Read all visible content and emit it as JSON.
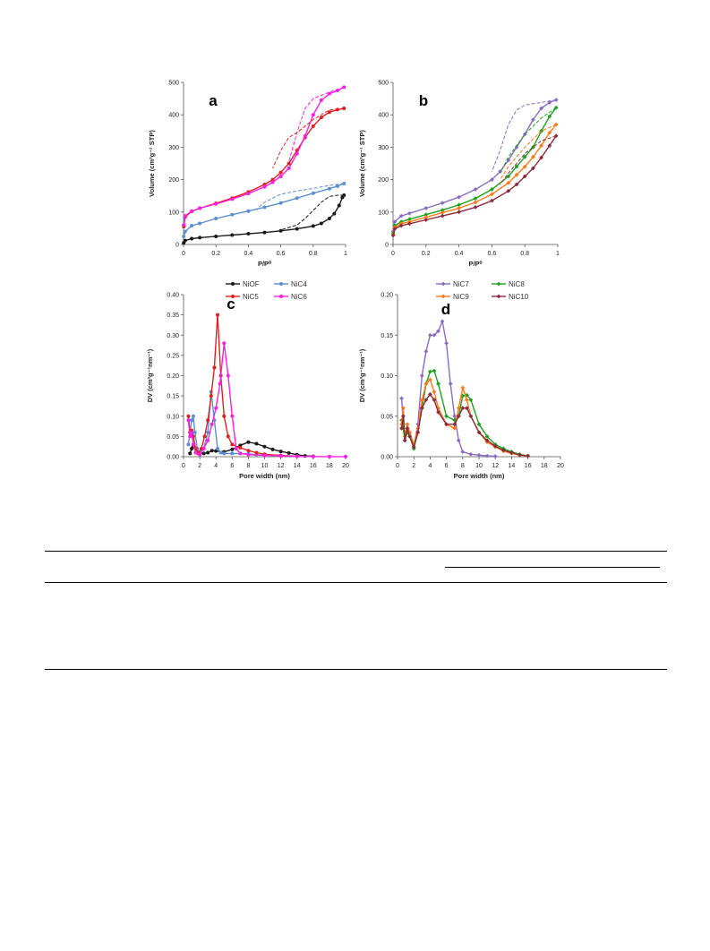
{
  "chart_data": [
    {
      "panel": "a",
      "type": "line",
      "xlabel": "P/P⁰",
      "ylabel": "Volume (cm³g⁻¹ STP)",
      "xlim": [
        0,
        1
      ],
      "ylim": [
        0,
        500
      ],
      "xticks": [
        "0",
        "0.2",
        "0.4",
        "0.6",
        "0.8",
        "1"
      ],
      "yticks": [
        "0",
        "100",
        "200",
        "300",
        "400",
        "500"
      ],
      "grid": false,
      "series": [
        {
          "name": "NiOF",
          "color": "#1a1a1a",
          "marker": "circle",
          "x": [
            0.001,
            0.01,
            0.05,
            0.1,
            0.2,
            0.3,
            0.4,
            0.5,
            0.6,
            0.7,
            0.8,
            0.85,
            0.9,
            0.93,
            0.96,
            0.98,
            0.99
          ],
          "y": [
            5,
            12,
            18,
            21,
            25,
            29,
            33,
            37,
            42,
            48,
            57,
            65,
            80,
            95,
            120,
            145,
            152
          ],
          "desorption": {
            "x": [
              0.99,
              0.95,
              0.9,
              0.85,
              0.8,
              0.75,
              0.7,
              0.6
            ],
            "y": [
              152,
              152,
              148,
              130,
              105,
              80,
              60,
              45
            ]
          }
        },
        {
          "name": "NiC4",
          "color": "#5b8fd0",
          "marker": "circle",
          "x": [
            0.001,
            0.01,
            0.05,
            0.1,
            0.2,
            0.3,
            0.4,
            0.5,
            0.6,
            0.7,
            0.8,
            0.9,
            0.95,
            0.99
          ],
          "y": [
            25,
            40,
            58,
            65,
            80,
            92,
            103,
            115,
            128,
            143,
            158,
            172,
            180,
            188
          ],
          "desorption": {
            "x": [
              0.99,
              0.9,
              0.8,
              0.7,
              0.6,
              0.5,
              0.45
            ],
            "y": [
              188,
              182,
              173,
              165,
              155,
              130,
              108
            ]
          }
        },
        {
          "name": "NiC5",
          "color": "#e02020",
          "marker": "circle",
          "x": [
            0.001,
            0.01,
            0.05,
            0.1,
            0.2,
            0.3,
            0.4,
            0.5,
            0.55,
            0.6,
            0.65,
            0.7,
            0.75,
            0.8,
            0.85,
            0.9,
            0.95,
            0.99
          ],
          "y": [
            55,
            85,
            102,
            112,
            127,
            143,
            162,
            185,
            200,
            222,
            250,
            290,
            330,
            365,
            392,
            408,
            416,
            420
          ],
          "desorption": {
            "x": [
              0.99,
              0.9,
              0.8,
              0.7,
              0.65,
              0.6,
              0.55
            ],
            "y": [
              420,
              415,
              385,
              345,
              330,
              290,
              235
            ]
          }
        },
        {
          "name": "NiC6",
          "color": "#ff1fe0",
          "marker": "circle",
          "x": [
            0.001,
            0.01,
            0.05,
            0.1,
            0.2,
            0.3,
            0.4,
            0.5,
            0.55,
            0.6,
            0.65,
            0.7,
            0.75,
            0.8,
            0.85,
            0.9,
            0.95,
            0.99
          ],
          "y": [
            60,
            88,
            103,
            112,
            125,
            140,
            157,
            178,
            192,
            210,
            235,
            280,
            335,
            400,
            445,
            465,
            475,
            485
          ],
          "desorption": {
            "x": [
              0.99,
              0.9,
              0.85,
              0.8,
              0.75,
              0.7,
              0.65
            ],
            "y": [
              485,
              470,
              460,
              450,
              420,
              345,
              255
            ]
          }
        }
      ],
      "label": "a"
    },
    {
      "panel": "b",
      "type": "line",
      "xlabel": "P/P⁰",
      "ylabel": "Volume (cm³g⁻¹ STP)",
      "xlim": [
        0,
        1
      ],
      "ylim": [
        0,
        500
      ],
      "xticks": [
        "0",
        "0.2",
        "0.4",
        "0.6",
        "0.8",
        "1"
      ],
      "yticks": [
        "0",
        "100",
        "200",
        "300",
        "400",
        "500"
      ],
      "grid": false,
      "series": [
        {
          "name": "NiC7",
          "color": "#8b6cc0",
          "marker": "diamond",
          "x": [
            0.001,
            0.01,
            0.05,
            0.1,
            0.2,
            0.3,
            0.4,
            0.5,
            0.6,
            0.65,
            0.7,
            0.75,
            0.8,
            0.85,
            0.9,
            0.95,
            0.99
          ],
          "y": [
            40,
            70,
            88,
            96,
            112,
            128,
            146,
            170,
            200,
            225,
            260,
            300,
            340,
            385,
            420,
            438,
            446
          ],
          "desorption": {
            "x": [
              0.99,
              0.9,
              0.8,
              0.75,
              0.7,
              0.65,
              0.6
            ],
            "y": [
              446,
              438,
              430,
              415,
              370,
              290,
              225
            ]
          }
        },
        {
          "name": "NiC8",
          "color": "#1fa01f",
          "marker": "diamond",
          "x": [
            0.001,
            0.01,
            0.05,
            0.1,
            0.2,
            0.3,
            0.4,
            0.5,
            0.6,
            0.7,
            0.75,
            0.8,
            0.85,
            0.9,
            0.95,
            0.99
          ],
          "y": [
            35,
            58,
            70,
            78,
            92,
            106,
            122,
            142,
            170,
            210,
            240,
            270,
            300,
            350,
            395,
            422
          ],
          "desorption": {
            "x": [
              0.99,
              0.9,
              0.8,
              0.7,
              0.65
            ],
            "y": [
              422,
              390,
              340,
              270,
              220
            ]
          }
        },
        {
          "name": "NiC9",
          "color": "#ff7a1a",
          "marker": "diamond",
          "x": [
            0.001,
            0.01,
            0.05,
            0.1,
            0.2,
            0.3,
            0.4,
            0.5,
            0.6,
            0.7,
            0.75,
            0.8,
            0.85,
            0.9,
            0.95,
            0.99
          ],
          "y": [
            30,
            52,
            64,
            70,
            84,
            98,
            112,
            130,
            155,
            190,
            215,
            240,
            270,
            305,
            345,
            370
          ],
          "desorption": {
            "x": [
              0.99,
              0.9,
              0.8,
              0.7,
              0.65
            ],
            "y": [
              370,
              350,
              300,
              240,
              200
            ]
          }
        },
        {
          "name": "NiC10",
          "color": "#8b2b3b",
          "marker": "diamond",
          "x": [
            0.001,
            0.01,
            0.05,
            0.1,
            0.2,
            0.3,
            0.4,
            0.5,
            0.6,
            0.7,
            0.75,
            0.8,
            0.85,
            0.9,
            0.95,
            0.99
          ],
          "y": [
            28,
            48,
            58,
            64,
            76,
            88,
            100,
            115,
            135,
            165,
            185,
            210,
            235,
            268,
            305,
            335
          ],
          "desorption": {
            "x": [
              0.99,
              0.9,
              0.8,
              0.7,
              0.65
            ],
            "y": [
              335,
              320,
              280,
              220,
              185
            ]
          }
        }
      ],
      "label": "b"
    },
    {
      "panel": "c",
      "type": "line",
      "xlabel": "Pore width (nm)",
      "ylabel": "DV (cm³g⁻¹nm⁻¹)",
      "xlim": [
        0,
        20
      ],
      "ylim": [
        0,
        0.4
      ],
      "xticks": [
        "0",
        "2",
        "4",
        "6",
        "8",
        "10",
        "12",
        "14",
        "16",
        "18",
        "20"
      ],
      "yticks": [
        "0.00",
        "0.05",
        "0.10",
        "0.15",
        "0.20",
        "0.25",
        "0.30",
        "0.35",
        "0.40"
      ],
      "grid": false,
      "legend_position": "top",
      "series": [
        {
          "name": "NiOF",
          "color": "#1a1a1a",
          "marker": "circle",
          "x": [
            0.8,
            1.0,
            1.2,
            1.5,
            2.0,
            2.5,
            3.0,
            3.5,
            4.0,
            5.0,
            6.0,
            7.0,
            8.0,
            9.0,
            10.0,
            11.0,
            12.0,
            13.0,
            14.0,
            15.0,
            16.0
          ],
          "y": [
            0.008,
            0.02,
            0.025,
            0.02,
            0.01,
            0.008,
            0.01,
            0.015,
            0.014,
            0.012,
            0.018,
            0.028,
            0.036,
            0.032,
            0.025,
            0.018,
            0.013,
            0.009,
            0.005,
            0.002,
            0.001
          ]
        },
        {
          "name": "NiC4",
          "color": "#5b8fd0",
          "marker": "circle",
          "x": [
            0.6,
            0.8,
            1.0,
            1.2,
            1.4,
            1.7,
            2.0,
            2.5,
            3.0,
            3.4,
            3.8,
            4.2,
            4.6,
            5.0,
            6.0,
            7.0,
            8.0,
            9.0,
            10.0
          ],
          "y": [
            0.03,
            0.06,
            0.09,
            0.1,
            0.06,
            0.02,
            0.01,
            0.02,
            0.06,
            0.16,
            0.09,
            0.02,
            0.01,
            0.008,
            0.008,
            0.008,
            0.007,
            0.005,
            0.003
          ]
        },
        {
          "name": "NiC5",
          "color": "#e02020",
          "marker": "circle",
          "x": [
            0.6,
            0.8,
            1.0,
            1.2,
            1.5,
            1.8,
            2.2,
            2.6,
            3.0,
            3.4,
            3.8,
            4.2,
            4.6,
            5.0,
            5.5,
            6.0,
            7.0,
            8.0,
            9.0,
            10.0,
            12.0,
            14.0
          ],
          "y": [
            0.1,
            0.06,
            0.065,
            0.05,
            0.02,
            0.008,
            0.02,
            0.05,
            0.09,
            0.15,
            0.22,
            0.35,
            0.2,
            0.1,
            0.05,
            0.03,
            0.022,
            0.015,
            0.01,
            0.006,
            0.003,
            0.001
          ]
        },
        {
          "name": "NiC6",
          "color": "#ff1fe0",
          "marker": "circle",
          "x": [
            0.6,
            0.8,
            1.0,
            1.2,
            1.5,
            2.0,
            2.5,
            3.0,
            3.5,
            4.0,
            4.5,
            5.0,
            5.5,
            6.0,
            6.5,
            7.0,
            8.0,
            10.0,
            12.0,
            14.0,
            16.0,
            18.0,
            20.0
          ],
          "y": [
            0.09,
            0.05,
            0.06,
            0.03,
            0.01,
            0.005,
            0.02,
            0.04,
            0.08,
            0.12,
            0.18,
            0.28,
            0.2,
            0.1,
            0.02,
            0.008,
            0.005,
            0.003,
            0.002,
            0.001,
            0.0005,
            0.0003,
            0.0002
          ]
        }
      ],
      "label": "c"
    },
    {
      "panel": "d",
      "type": "line",
      "xlabel": "Pore width (nm)",
      "ylabel": "DV (cm³g⁻¹nm⁻¹)",
      "xlim": [
        0,
        20
      ],
      "ylim": [
        0,
        0.2
      ],
      "xticks": [
        "0",
        "2",
        "4",
        "6",
        "8",
        "10",
        "12",
        "14",
        "16",
        "18",
        "20"
      ],
      "yticks": [
        "0.00",
        "0.05",
        "0.10",
        "0.15",
        "0.20"
      ],
      "grid": false,
      "legend_position": "top",
      "series": [
        {
          "name": "NiC7",
          "color": "#8b6cc0",
          "marker": "diamond",
          "x": [
            0.5,
            0.7,
            0.9,
            1.2,
            1.5,
            2.0,
            2.5,
            3.0,
            3.5,
            4.0,
            4.5,
            5.0,
            5.5,
            6.0,
            6.5,
            7.0,
            7.5,
            8.0,
            9.0,
            10.0,
            11.0,
            12.0
          ],
          "y": [
            0.072,
            0.04,
            0.02,
            0.035,
            0.025,
            0.012,
            0.04,
            0.1,
            0.13,
            0.15,
            0.15,
            0.155,
            0.167,
            0.14,
            0.09,
            0.05,
            0.02,
            0.006,
            0.003,
            0.002,
            0.001,
            0.0005
          ]
        },
        {
          "name": "NiC8",
          "color": "#1fa01f",
          "marker": "diamond",
          "x": [
            0.5,
            0.7,
            0.9,
            1.2,
            1.5,
            2.0,
            2.5,
            3.0,
            3.5,
            4.0,
            4.5,
            5.0,
            6.0,
            7.0,
            7.5,
            8.0,
            8.5,
            9.0,
            10.0,
            11.0,
            12.0,
            13.0,
            14.0,
            15.0,
            16.0
          ],
          "y": [
            0.045,
            0.035,
            0.02,
            0.03,
            0.025,
            0.01,
            0.03,
            0.06,
            0.09,
            0.105,
            0.106,
            0.09,
            0.05,
            0.045,
            0.05,
            0.075,
            0.076,
            0.07,
            0.04,
            0.025,
            0.015,
            0.01,
            0.006,
            0.003,
            0.001
          ]
        },
        {
          "name": "NiC9",
          "color": "#ff7a1a",
          "marker": "diamond",
          "x": [
            0.5,
            0.7,
            0.9,
            1.2,
            1.5,
            2.0,
            2.5,
            3.0,
            3.5,
            4.0,
            4.5,
            5.0,
            6.0,
            7.0,
            7.5,
            8.0,
            8.5,
            9.0,
            10.0,
            11.0,
            12.0,
            13.0,
            14.0,
            15.0,
            16.0
          ],
          "y": [
            0.04,
            0.06,
            0.025,
            0.04,
            0.03,
            0.015,
            0.035,
            0.07,
            0.09,
            0.095,
            0.08,
            0.06,
            0.04,
            0.035,
            0.06,
            0.085,
            0.07,
            0.05,
            0.03,
            0.018,
            0.012,
            0.007,
            0.004,
            0.002,
            0.001
          ]
        },
        {
          "name": "NiC10",
          "color": "#8b2b3b",
          "marker": "diamond",
          "x": [
            0.5,
            0.7,
            0.9,
            1.2,
            1.5,
            2.0,
            2.5,
            3.0,
            3.5,
            4.0,
            4.5,
            5.0,
            6.0,
            7.0,
            7.5,
            8.0,
            8.5,
            9.0,
            10.0,
            11.0,
            12.0,
            13.0,
            14.0,
            15.0,
            16.0
          ],
          "y": [
            0.035,
            0.05,
            0.02,
            0.035,
            0.025,
            0.012,
            0.03,
            0.06,
            0.07,
            0.077,
            0.07,
            0.055,
            0.04,
            0.04,
            0.05,
            0.06,
            0.06,
            0.05,
            0.03,
            0.02,
            0.013,
            0.008,
            0.005,
            0.002,
            0.001
          ]
        }
      ],
      "label": "d"
    }
  ]
}
